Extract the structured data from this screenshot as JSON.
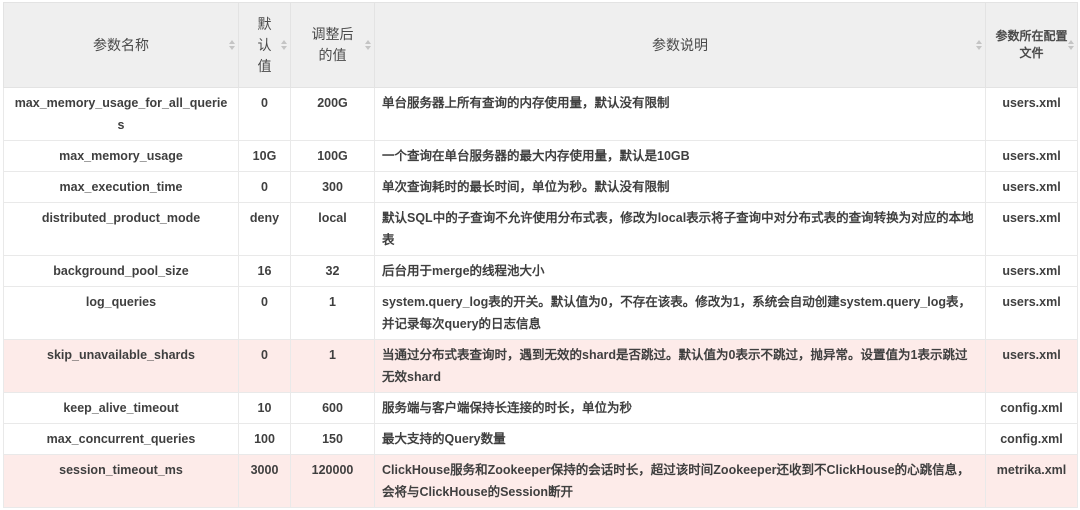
{
  "table": {
    "headers": [
      {
        "key": "param-name",
        "label": "参数名称"
      },
      {
        "key": "default-value",
        "label": "默认值"
      },
      {
        "key": "adjusted-value",
        "label": "调整后的值"
      },
      {
        "key": "description",
        "label": "参数说明"
      },
      {
        "key": "config-file",
        "label": "参数所在配置文件"
      }
    ],
    "rows": [
      {
        "name": "max_memory_usage_for_all_queries",
        "default": "0",
        "adjusted": "200G",
        "description": "单台服务器上所有查询的内存使用量，默认没有限制",
        "file": "users.xml",
        "highlighted": false
      },
      {
        "name": "max_memory_usage",
        "default": "10G",
        "adjusted": "100G",
        "description": "一个查询在单台服务器的最大内存使用量，默认是10GB",
        "file": "users.xml",
        "highlighted": false
      },
      {
        "name": "max_execution_time",
        "default": "0",
        "adjusted": "300",
        "description": "单次查询耗时的最长时间，单位为秒。默认没有限制",
        "file": "users.xml",
        "highlighted": false
      },
      {
        "name": "distributed_product_mode",
        "default": "deny",
        "adjusted": "local",
        "description": "默认SQL中的子查询不允许使用分布式表，修改为local表示将子查询中对分布式表的查询转换为对应的本地表",
        "file": "users.xml",
        "highlighted": false
      },
      {
        "name": "background_pool_size",
        "default": "16",
        "adjusted": "32",
        "description": "后台用于merge的线程池大小",
        "file": "users.xml",
        "highlighted": false
      },
      {
        "name": "log_queries",
        "default": "0",
        "adjusted": "1",
        "description": "system.query_log表的开关。默认值为0，不存在该表。修改为1，系统会自动创建system.query_log表，并记录每次query的日志信息",
        "file": "users.xml",
        "highlighted": false
      },
      {
        "name": "skip_unavailable_shards",
        "default": "0",
        "adjusted": "1",
        "description": "当通过分布式表查询时，遇到无效的shard是否跳过。默认值为0表示不跳过，抛异常。设置值为1表示跳过无效shard",
        "file": "users.xml",
        "highlighted": true
      },
      {
        "name": "keep_alive_timeout",
        "default": "10",
        "adjusted": "600",
        "description": "服务端与客户端保持长连接的时长，单位为秒",
        "file": "config.xml",
        "highlighted": false
      },
      {
        "name": "max_concurrent_queries",
        "default": "100",
        "adjusted": "150",
        "description": "最大支持的Query数量",
        "file": "config.xml",
        "highlighted": false
      },
      {
        "name": "session_timeout_ms",
        "default": "3000",
        "adjusted": "120000",
        "description": "ClickHouse服务和Zookeeper保持的会话时长，超过该时间Zookeeper还收到不ClickHouse的心跳信息，会将与ClickHouse的Session断开",
        "file": "metrika.xml",
        "highlighted": true
      }
    ]
  },
  "colors": {
    "header_bg": "#efefef",
    "highlight_bg": "#fdebe9",
    "border": "#e9e9e9",
    "text": "#3f3f3f",
    "header_text": "#4a4a4a",
    "sort_icon": "#c4c4c4"
  }
}
